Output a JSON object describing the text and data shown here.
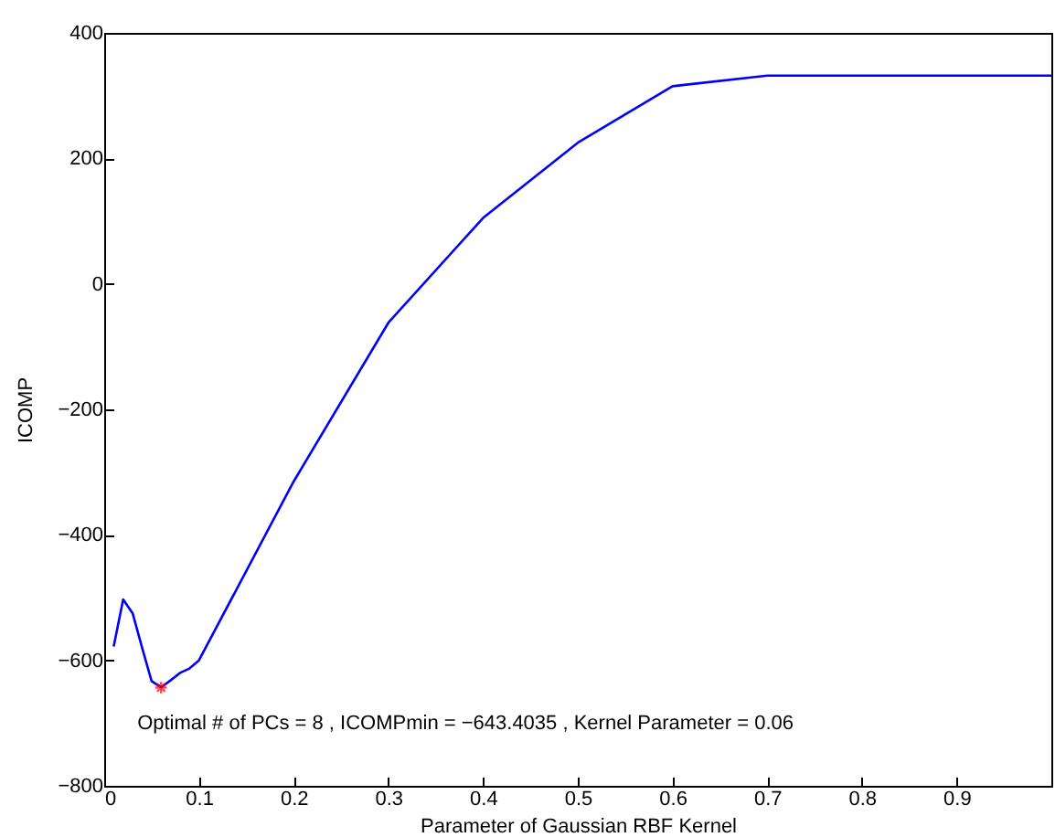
{
  "chart_data": {
    "type": "line",
    "xlabel": "Parameter of Gaussian RBF Kernel",
    "ylabel": "ICOMP",
    "xlim": [
      0,
      1
    ],
    "xticks": [
      0,
      0.1,
      0.2,
      0.3,
      0.4,
      0.5,
      0.6,
      0.7,
      0.8,
      0.9
    ],
    "ylim": [
      -800,
      400
    ],
    "yticks": [
      -800,
      -600,
      -400,
      -200,
      0,
      200,
      400
    ],
    "grid": false,
    "annotations": [
      {
        "text": "Optimal # of PCs = 8 , ICOMPmin = −643.4035 , Kernel Parameter = 0.06",
        "x": 0.06,
        "y": -643.4035
      }
    ],
    "series": [
      {
        "color": "#0000ff",
        "x": [
          0.01,
          0.02,
          0.03,
          0.04,
          0.05,
          0.06,
          0.07,
          0.08,
          0.09,
          0.1,
          0.2,
          0.3,
          0.4,
          0.5,
          0.6,
          0.7,
          0.8,
          0.9,
          1.0
        ],
        "values": [
          -578,
          -503,
          -525,
          -580,
          -633,
          -643,
          -632,
          -620,
          -613,
          -600,
          -315,
          -62,
          105,
          225,
          315,
          332,
          332,
          332,
          332
        ]
      },
      {
        "type": "scatter",
        "color": "#ff0000",
        "marker": "cross",
        "x": [
          0.06
        ],
        "values": [
          -643.4035
        ]
      }
    ]
  }
}
